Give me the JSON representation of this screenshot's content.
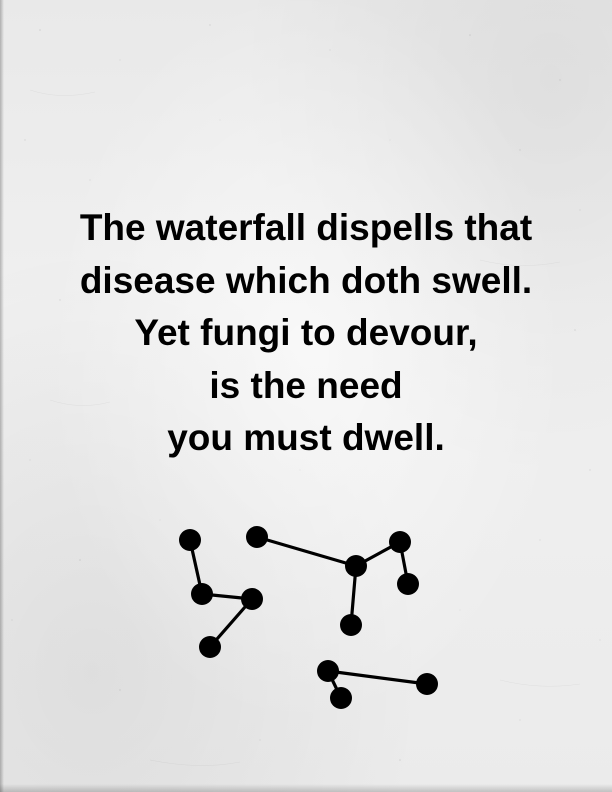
{
  "verse": {
    "lines": [
      "The waterfall dispells that",
      "disease which doth swell.",
      "Yet fungi to devour,",
      "is the need",
      "you must dwell."
    ]
  },
  "colors": {
    "paper": "#ececec",
    "ink": "#000000"
  }
}
